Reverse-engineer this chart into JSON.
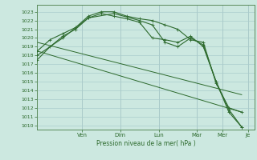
{
  "background_color": "#cce8e0",
  "grid_color": "#aacccc",
  "line_color": "#2d6a2d",
  "tick_label_color": "#2d6a2d",
  "xlabel": "Pression niveau de la mer( hPa )",
  "ylim": [
    1009.5,
    1023.8
  ],
  "xlim": [
    0,
    17.0
  ],
  "yticks": [
    1010,
    1011,
    1012,
    1013,
    1014,
    1015,
    1016,
    1017,
    1018,
    1019,
    1020,
    1021,
    1022,
    1023
  ],
  "day_labels": [
    "Ven",
    "Dim",
    "Lun",
    "Mar",
    "Mer",
    "Je"
  ],
  "day_positions": [
    3.5,
    6.5,
    9.5,
    12.5,
    14.5,
    16.5
  ],
  "series1": {
    "x": [
      0,
      1,
      2,
      3,
      4,
      5,
      6,
      7,
      8,
      9,
      10,
      11,
      12,
      13,
      14,
      15,
      16
    ],
    "y": [
      1018.5,
      1019.8,
      1020.5,
      1021.2,
      1022.5,
      1023.0,
      1023.0,
      1022.5,
      1022.2,
      1022.0,
      1021.5,
      1021.0,
      1019.8,
      1019.5,
      1014.8,
      1012.0,
      1011.5
    ]
  },
  "series2": {
    "x": [
      0,
      1,
      2,
      3,
      4,
      5,
      6,
      7,
      8,
      9,
      10,
      11,
      12,
      13,
      14,
      15,
      16
    ],
    "y": [
      1017.5,
      1019.0,
      1020.2,
      1021.0,
      1022.3,
      1022.8,
      1022.5,
      1022.2,
      1021.8,
      1020.0,
      1019.8,
      1019.5,
      1020.2,
      1019.0,
      1015.0,
      1011.8,
      1009.8
    ]
  },
  "series3": {
    "x": [
      0,
      2,
      4,
      6,
      8,
      9,
      10,
      11,
      12,
      13,
      14,
      15,
      16
    ],
    "y": [
      1018.0,
      1020.0,
      1022.3,
      1022.8,
      1022.0,
      1021.5,
      1019.5,
      1019.0,
      1020.0,
      1019.2,
      1015.0,
      1011.5,
      1009.8
    ]
  },
  "linear1": {
    "x": [
      0,
      16
    ],
    "y": [
      1019.5,
      1013.5
    ]
  },
  "linear2": {
    "x": [
      0,
      16
    ],
    "y": [
      1018.5,
      1011.5
    ]
  }
}
